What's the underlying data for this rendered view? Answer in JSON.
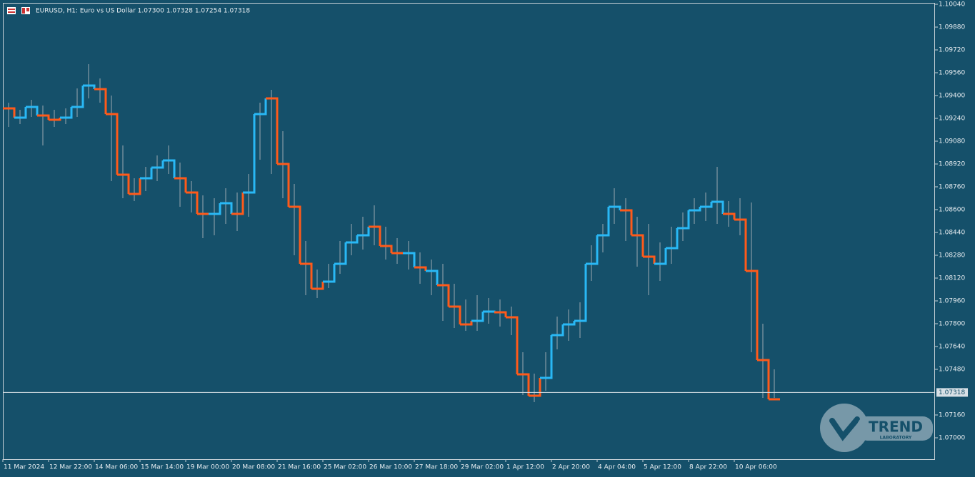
{
  "chart_data": {
    "type": "line",
    "title": "EURUSD, H1:  Euro vs US Dollar  1.07300 1.07328 1.07254 1.07318",
    "categories": [
      "11 Mar 2024",
      null,
      null,
      null,
      "12 Mar 22:00",
      null,
      null,
      null,
      "14 Mar 06:00",
      null,
      null,
      null,
      "15 Mar 14:00",
      null,
      null,
      null,
      "19 Mar 00:00",
      null,
      null,
      null,
      "20 Mar 08:00",
      null,
      null,
      null,
      "21 Mar 16:00",
      null,
      null,
      null,
      "25 Mar 02:00",
      null,
      null,
      null,
      "26 Mar 10:00",
      null,
      null,
      null,
      "27 Mar 18:00",
      null,
      null,
      null,
      "29 Mar 02:00",
      null,
      null,
      null,
      "1 Apr 12:00",
      null,
      null,
      null,
      "2 Apr 20:00",
      null,
      null,
      null,
      "4 Apr 04:00",
      null,
      null,
      null,
      "5 Apr 12:00",
      null,
      null,
      null,
      "8 Apr 22:00",
      null,
      null,
      null,
      "10 Apr 06:00",
      null,
      null,
      null
    ],
    "values": [
      1.0931,
      1.09245,
      1.0932,
      1.0926,
      1.0923,
      1.09245,
      1.0932,
      1.0947,
      1.09445,
      1.0927,
      1.08845,
      1.0871,
      1.0882,
      1.08895,
      1.08945,
      1.0882,
      1.0872,
      1.0857,
      1.0857,
      1.08645,
      1.0857,
      1.0872,
      1.0927,
      1.0938,
      1.0892,
      1.0862,
      1.0822,
      1.08045,
      1.08095,
      1.0822,
      1.0837,
      1.0842,
      1.0848,
      1.08345,
      1.08295,
      1.08295,
      1.08195,
      1.0817,
      1.0807,
      1.0792,
      1.07795,
      1.0782,
      1.07885,
      1.0788,
      1.07845,
      1.07445,
      1.07295,
      1.0742,
      1.0772,
      1.07795,
      1.0782,
      1.0822,
      1.0842,
      1.0862,
      1.08595,
      1.0842,
      1.0827,
      1.0822,
      1.0833,
      1.0847,
      1.08595,
      1.0862,
      1.08655,
      1.0857,
      1.0853,
      1.0817,
      1.07545,
      1.0727
    ],
    "colors": [
      "#ff5a1a",
      "#29b8f5",
      "#29b8f5",
      "#ff5a1a",
      "#ff5a1a",
      "#29b8f5",
      "#29b8f5",
      "#29b8f5",
      "#ff5a1a",
      "#ff5a1a",
      "#ff5a1a",
      "#ff5a1a",
      "#29b8f5",
      "#29b8f5",
      "#29b8f5",
      "#ff5a1a",
      "#ff5a1a",
      "#ff5a1a",
      "#29b8f5",
      "#29b8f5",
      "#ff5a1a",
      "#29b8f5",
      "#29b8f5",
      "#ff5a1a",
      "#ff5a1a",
      "#ff5a1a",
      "#ff5a1a",
      "#ff5a1a",
      "#29b8f5",
      "#29b8f5",
      "#29b8f5",
      "#29b8f5",
      "#ff5a1a",
      "#ff5a1a",
      "#ff5a1a",
      "#29b8f5",
      "#ff5a1a",
      "#29b8f5",
      "#ff5a1a",
      "#ff5a1a",
      "#ff5a1a",
      "#29b8f5",
      "#29b8f5",
      "#ff5a1a",
      "#ff5a1a",
      "#ff5a1a",
      "#ff5a1a",
      "#29b8f5",
      "#29b8f5",
      "#29b8f5",
      "#29b8f5",
      "#29b8f5",
      "#29b8f5",
      "#29b8f5",
      "#ff5a1a",
      "#ff5a1a",
      "#ff5a1a",
      "#29b8f5",
      "#29b8f5",
      "#29b8f5",
      "#29b8f5",
      "#29b8f5",
      "#29b8f5",
      "#ff5a1a",
      "#ff5a1a",
      "#ff5a1a",
      "#ff5a1a",
      "#ff5a1a"
    ],
    "highs": [
      1.0935,
      1.093,
      1.0937,
      1.0933,
      1.093,
      1.0931,
      1.0945,
      1.0962,
      1.0952,
      1.094,
      1.0905,
      1.0882,
      1.089,
      1.0898,
      1.0905,
      1.0893,
      1.088,
      1.087,
      1.0868,
      1.0875,
      1.0872,
      1.0885,
      1.0935,
      1.0944,
      1.0915,
      1.0878,
      1.0838,
      1.0818,
      1.0822,
      1.0838,
      1.085,
      1.0855,
      1.0863,
      1.0848,
      1.084,
      1.0838,
      1.083,
      1.0825,
      1.0822,
      1.0808,
      1.0797,
      1.08,
      1.0798,
      1.0797,
      1.0792,
      1.076,
      1.0745,
      1.076,
      1.0785,
      1.079,
      1.0795,
      1.0835,
      1.085,
      1.0875,
      1.0868,
      1.0855,
      1.085,
      1.0837,
      1.0848,
      1.0858,
      1.0868,
      1.0872,
      1.089,
      1.0866,
      1.0868,
      1.0865,
      1.078,
      1.0748
    ],
    "lows": [
      1.0918,
      1.092,
      1.0925,
      1.0905,
      1.0918,
      1.092,
      1.0925,
      1.0938,
      1.0935,
      1.088,
      1.0868,
      1.0866,
      1.0873,
      1.088,
      1.0885,
      1.0862,
      1.0858,
      1.084,
      1.0842,
      1.085,
      1.0845,
      1.0855,
      1.0895,
      1.0885,
      1.0868,
      1.0828,
      1.08,
      1.0798,
      1.0805,
      1.0815,
      1.0828,
      1.0832,
      1.0835,
      1.0825,
      1.0822,
      1.0818,
      1.0808,
      1.08,
      1.0782,
      1.0777,
      1.0775,
      1.0775,
      1.078,
      1.0778,
      1.0772,
      1.073,
      1.0725,
      1.0733,
      1.0762,
      1.0768,
      1.077,
      1.081,
      1.083,
      1.085,
      1.0838,
      1.082,
      1.08,
      1.081,
      1.0822,
      1.0838,
      1.085,
      1.0852,
      1.085,
      1.0848,
      1.0842,
      1.076,
      1.0728,
      1.0728
    ],
    "bar_color": "#9aa8b0",
    "ylim": [
      1.0685,
      1.1007
    ],
    "yticks": [
      {
        "value": 1.1004,
        "label": "1.10040"
      },
      {
        "value": 1.0988,
        "label": "1.09880"
      },
      {
        "value": 1.0972,
        "label": "1.09720"
      },
      {
        "value": 1.0956,
        "label": "1.09560"
      },
      {
        "value": 1.094,
        "label": "1.09400"
      },
      {
        "value": 1.0924,
        "label": "1.09240"
      },
      {
        "value": 1.0908,
        "label": "1.09080"
      },
      {
        "value": 1.0892,
        "label": "1.08920"
      },
      {
        "value": 1.0876,
        "label": "1.08760"
      },
      {
        "value": 1.086,
        "label": "1.08600"
      },
      {
        "value": 1.0844,
        "label": "1.08440"
      },
      {
        "value": 1.0828,
        "label": "1.08280"
      },
      {
        "value": 1.0812,
        "label": "1.08120"
      },
      {
        "value": 1.0796,
        "label": "1.07960"
      },
      {
        "value": 1.078,
        "label": "1.07800"
      },
      {
        "value": 1.0764,
        "label": "1.07640"
      },
      {
        "value": 1.0748,
        "label": "1.07480"
      },
      {
        "value": 1.0716,
        "label": "1.07160"
      },
      {
        "value": 1.07,
        "label": "1.07000"
      }
    ],
    "current_price": 1.07318,
    "watermark": [
      "TREND",
      "LABORATORY"
    ]
  }
}
